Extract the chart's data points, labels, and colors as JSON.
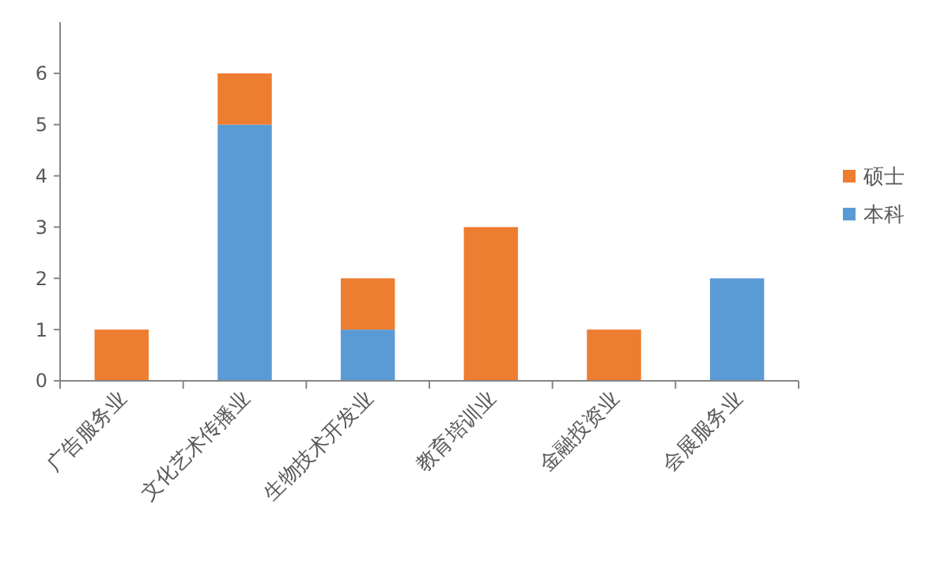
{
  "chart_data": {
    "type": "bar",
    "stacked": true,
    "categories": [
      "广告服务业",
      "文化艺术传播业",
      "生物技术开发业",
      "教育培训业",
      "金融投资业",
      "会展服务业"
    ],
    "series": [
      {
        "name": "本科",
        "color": "#5b9bd5",
        "values": [
          0,
          5,
          1,
          0,
          0,
          2
        ]
      },
      {
        "name": "硕士",
        "color": "#ed7d31",
        "values": [
          1,
          1,
          1,
          3,
          1,
          0
        ]
      }
    ],
    "ylim": [
      0,
      7
    ],
    "yticks": [
      0,
      1,
      2,
      3,
      4,
      5,
      6
    ],
    "grid": false,
    "legend": "right"
  }
}
